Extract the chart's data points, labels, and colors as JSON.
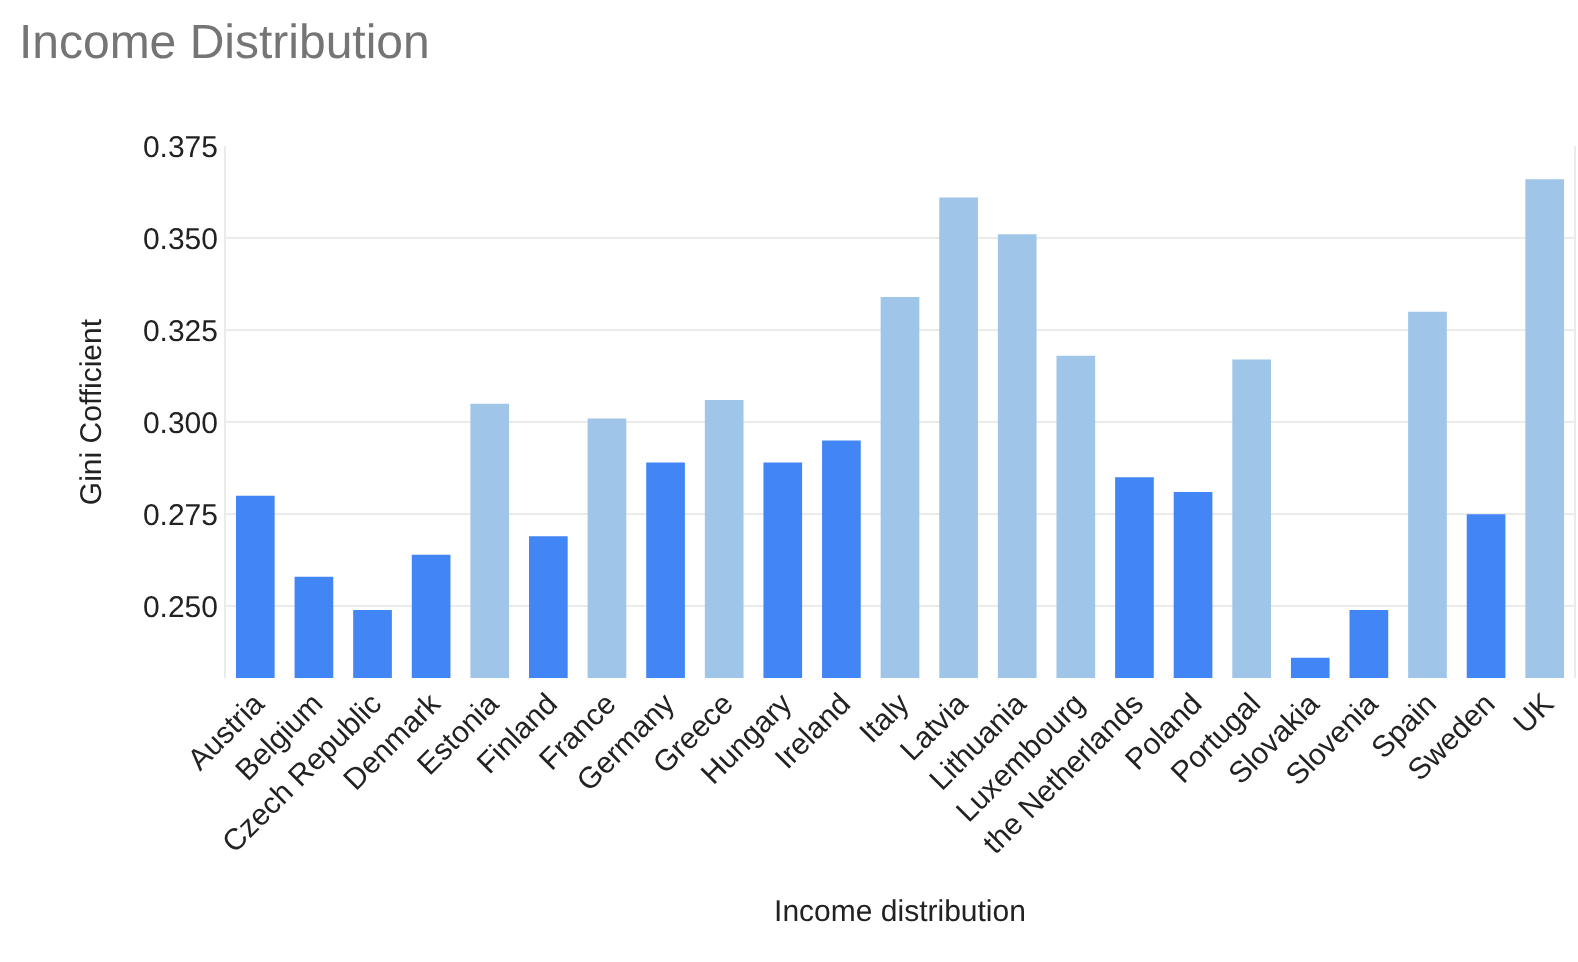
{
  "chart_data": {
    "type": "bar",
    "title": "Income Distribution",
    "xlabel": "Income distribution",
    "ylabel": "Gini Cofficient",
    "categories": [
      "Austria",
      "Belgium",
      "Czech Republic",
      "Denmark",
      "Estonia",
      "Finland",
      "France",
      "Germany",
      "Greece",
      "Hungary",
      "Ireland",
      "Italy",
      "Latvia",
      "Lithuania",
      "Luxembourg",
      "the Netherlands",
      "Poland",
      "Portugal",
      "Slovakia",
      "Slovenia",
      "Spain",
      "Sweden",
      "UK"
    ],
    "values": [
      0.28,
      0.258,
      0.249,
      0.264,
      0.305,
      0.269,
      0.301,
      0.289,
      0.306,
      0.289,
      0.295,
      0.334,
      0.361,
      0.351,
      0.318,
      0.285,
      0.281,
      0.317,
      0.236,
      0.249,
      0.33,
      0.275,
      0.366
    ],
    "colors": [
      "#4285f4",
      "#4285f4",
      "#4285f4",
      "#4285f4",
      "#9fc5e8",
      "#4285f4",
      "#9fc5e8",
      "#4285f4",
      "#9fc5e8",
      "#4285f4",
      "#4285f4",
      "#9fc5e8",
      "#9fc5e8",
      "#9fc5e8",
      "#9fc5e8",
      "#4285f4",
      "#4285f4",
      "#9fc5e8",
      "#4285f4",
      "#4285f4",
      "#9fc5e8",
      "#4285f4",
      "#9fc5e8"
    ],
    "ylim": [
      0.2305,
      0.375
    ],
    "yticks": [
      {
        "value": 0.25,
        "label": "0.250"
      },
      {
        "value": 0.275,
        "label": "0.275"
      },
      {
        "value": 0.3,
        "label": "0.300"
      },
      {
        "value": 0.325,
        "label": "0.325"
      },
      {
        "value": 0.35,
        "label": "0.350"
      },
      {
        "value": 0.375,
        "label": "0.375"
      }
    ],
    "grid": "y"
  }
}
